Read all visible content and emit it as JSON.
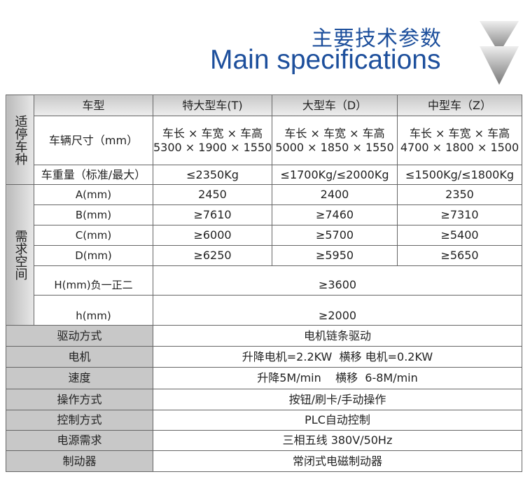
{
  "title": {
    "cn": "主要技术参数",
    "en": "Main specifications"
  },
  "colors": {
    "title": "#1d4f9c",
    "label_bg": "#c8c8c8"
  },
  "table": {
    "header": [
      "车型",
      "特大型车(T)",
      "大型车（D）",
      "中型车（Z）"
    ],
    "group1": "适停车种",
    "group2": "需求空间",
    "size": {
      "label": "车辆尺寸（mm）",
      "line1": "车长 × 车宽 × 车高",
      "values": [
        "5300 × 1900 × 1550",
        "5000 × 1850 × 1550",
        "4700 × 1800 × 1500"
      ]
    },
    "weight": {
      "label": "车重量（标准/最大）",
      "values": [
        "≤2350Kg",
        "≤1700Kg/≤2000Kg",
        "≤1500Kg/≤1800Kg"
      ]
    },
    "space": [
      {
        "label": "A(mm)",
        "values": [
          "2450",
          "2400",
          "2350"
        ]
      },
      {
        "label": "B(mm)",
        "values": [
          "≥7610",
          "≥7460",
          "≥7310"
        ]
      },
      {
        "label": "C(mm)",
        "values": [
          "≥6000",
          "≥5700",
          "≥5400"
        ]
      },
      {
        "label": "D(mm)",
        "values": [
          "≥6250",
          "≥5950",
          "≥5650"
        ]
      }
    ],
    "H": {
      "label": "H(mm)负一正二",
      "value": "≥3600"
    },
    "h": {
      "label": "h(mm)",
      "value": "≥2000"
    },
    "specs": [
      {
        "label": "驱动方式",
        "value": "电机链条驱动"
      },
      {
        "label": "电机",
        "value": "升降电机=2.2KW  横移 电机=0.2KW"
      },
      {
        "label": "速度",
        "value": "升降5M/min    横移  6-8M/min"
      },
      {
        "label": "操作方式",
        "value": "按钮/刷卡/手动操作"
      },
      {
        "label": "控制方式",
        "value": "PLC自动控制"
      },
      {
        "label": "电源需求",
        "value": "三相五线 380V/50Hz"
      },
      {
        "label": "制动器",
        "value": "常闭式电磁制动器"
      }
    ]
  }
}
